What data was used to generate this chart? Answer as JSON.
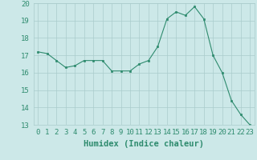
{
  "x": [
    0,
    1,
    2,
    3,
    4,
    5,
    6,
    7,
    8,
    9,
    10,
    11,
    12,
    13,
    14,
    15,
    16,
    17,
    18,
    19,
    20,
    21,
    22,
    23
  ],
  "y": [
    17.2,
    17.1,
    16.7,
    16.3,
    16.4,
    16.7,
    16.7,
    16.7,
    16.1,
    16.1,
    16.1,
    16.5,
    16.7,
    17.5,
    19.1,
    19.5,
    19.3,
    19.8,
    19.1,
    17.0,
    16.0,
    14.4,
    13.6,
    13.0
  ],
  "line_color": "#2e8b6e",
  "marker_color": "#2e8b6e",
  "bg_color": "#cce8e8",
  "grid_color": "#aacccc",
  "xlabel": "Humidex (Indice chaleur)",
  "ylim": [
    13,
    20
  ],
  "xlim": [
    -0.5,
    23.5
  ],
  "yticks": [
    13,
    14,
    15,
    16,
    17,
    18,
    19,
    20
  ],
  "xticks": [
    0,
    1,
    2,
    3,
    4,
    5,
    6,
    7,
    8,
    9,
    10,
    11,
    12,
    13,
    14,
    15,
    16,
    17,
    18,
    19,
    20,
    21,
    22,
    23
  ],
  "label_fontsize": 7.5,
  "tick_fontsize": 6.5
}
